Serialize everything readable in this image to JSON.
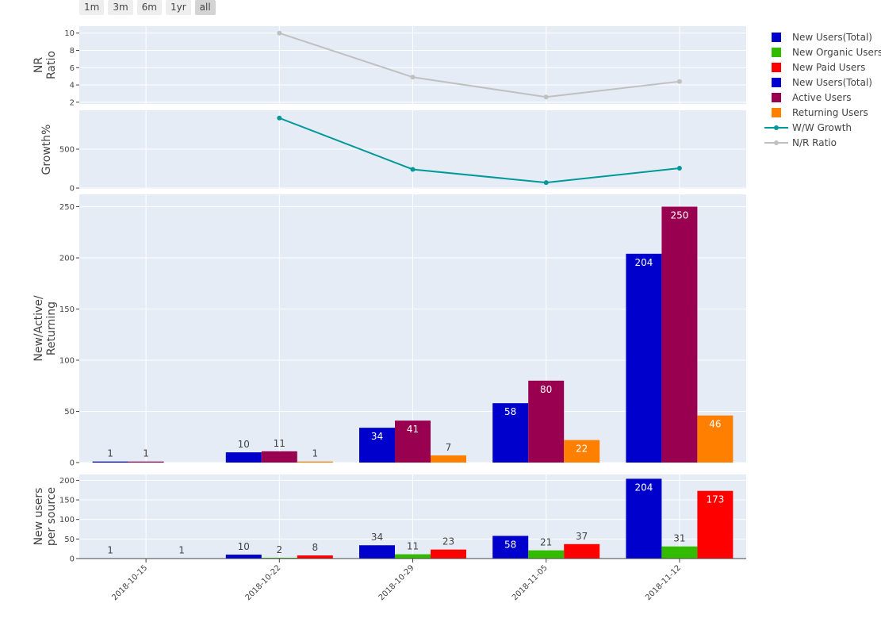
{
  "range_selector": {
    "buttons": [
      {
        "label": "1m",
        "active": false
      },
      {
        "label": "3m",
        "active": false
      },
      {
        "label": "6m",
        "active": false
      },
      {
        "label": "1yr",
        "active": false
      },
      {
        "label": "all",
        "active": true
      }
    ]
  },
  "chart_data": {
    "type": "multi-panel",
    "x": [
      "2018-10-15",
      "2018-10-22",
      "2018-10-29",
      "2018-11-05",
      "2018-11-12"
    ],
    "legend_placement": "right",
    "panels": [
      {
        "id": "nr_ratio",
        "type": "line",
        "ylabel": [
          "NR",
          "Ratio"
        ],
        "ylim": [
          1.8,
          10.8
        ],
        "yticks": [
          2,
          4,
          6,
          8,
          10
        ],
        "series": [
          {
            "name": "N/R Ratio",
            "color": "#c0c0c0",
            "values": [
              null,
              10,
              4.9,
              2.6,
              4.4
            ]
          }
        ]
      },
      {
        "id": "growth",
        "type": "line",
        "ylabel": [
          "Growth%"
        ],
        "ylim": [
          -10,
          1000
        ],
        "yticks": [
          0,
          500
        ],
        "series": [
          {
            "name": "W/W Growth",
            "color": "#00999a",
            "values": [
              null,
              900,
              240,
              70,
              255
            ]
          }
        ]
      },
      {
        "id": "new_active_returning",
        "type": "bar",
        "ylabel": [
          "New/Active/",
          "Returning"
        ],
        "ylim": [
          0,
          262
        ],
        "yticks": [
          0,
          50,
          100,
          150,
          200,
          250
        ],
        "series": [
          {
            "name": "New Users(Total)",
            "color": "#0000cc",
            "values": [
              1,
              10,
              34,
              58,
              204
            ]
          },
          {
            "name": "Active Users",
            "color": "#990050",
            "values": [
              1,
              11,
              41,
              80,
              250
            ]
          },
          {
            "name": "Returning Users",
            "color": "#ff8000",
            "values": [
              null,
              1,
              7,
              22,
              46
            ]
          }
        ]
      },
      {
        "id": "new_per_source",
        "type": "bar",
        "ylabel": [
          "New users",
          "per source"
        ],
        "ylim": [
          0,
          215
        ],
        "yticks": [
          0,
          50,
          100,
          150,
          200
        ],
        "series": [
          {
            "name": "New Users(Total)",
            "color": "#0000cc",
            "values": [
              1,
              10,
              34,
              58,
              204
            ]
          },
          {
            "name": "New Organic Users",
            "color": "#33bb00",
            "values": [
              null,
              2,
              11,
              21,
              31
            ]
          },
          {
            "name": "New Paid Users",
            "color": "#ff0000",
            "values": [
              1,
              8,
              23,
              37,
              173
            ]
          }
        ]
      }
    ],
    "legend": [
      {
        "name": "New Users(Total)",
        "color": "#0000cc",
        "kind": "bar"
      },
      {
        "name": "New Organic Users",
        "color": "#33bb00",
        "kind": "bar"
      },
      {
        "name": "New Paid Users",
        "color": "#ff0000",
        "kind": "bar"
      },
      {
        "name": "New Users(Total)",
        "color": "#0000cc",
        "kind": "bar"
      },
      {
        "name": "Active Users",
        "color": "#990050",
        "kind": "bar"
      },
      {
        "name": "Returning Users",
        "color": "#ff8000",
        "kind": "bar"
      },
      {
        "name": "W/W Growth",
        "color": "#00999a",
        "kind": "line"
      },
      {
        "name": "N/R Ratio",
        "color": "#c0c0c0",
        "kind": "line"
      }
    ]
  }
}
